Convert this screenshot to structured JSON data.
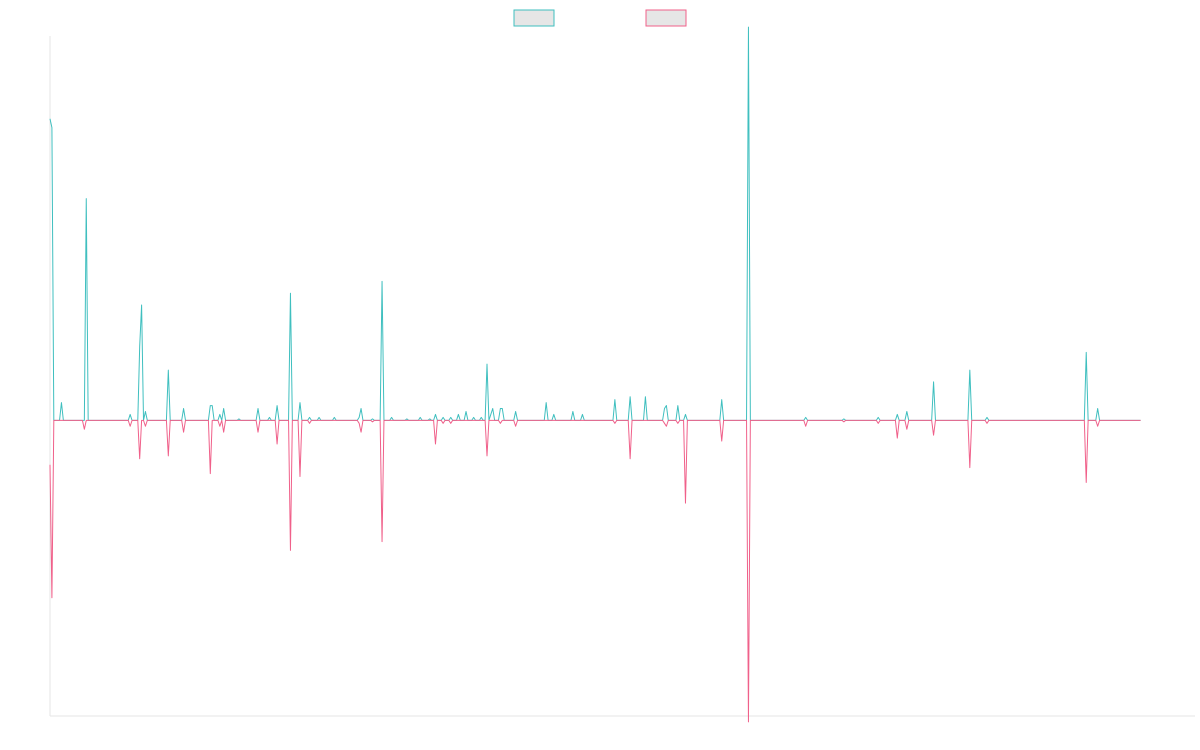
{
  "chart_data": {
    "type": "line",
    "title": "",
    "xlabel": "",
    "ylabel": "",
    "xlim": [
      0,
      1200
    ],
    "ylim": [
      -100,
      130
    ],
    "grid": false,
    "legend_position": "top-center",
    "series": [
      {
        "name": "",
        "color": "#3fbfbf",
        "legend_fill": "#e6e6e6",
        "points": [
          [
            0,
            102
          ],
          [
            2,
            99
          ],
          [
            4,
            0
          ],
          [
            10,
            0
          ],
          [
            12,
            6
          ],
          [
            14,
            0
          ],
          [
            34,
            0
          ],
          [
            36,
            0
          ],
          [
            38,
            75
          ],
          [
            40,
            0
          ],
          [
            82,
            0
          ],
          [
            84,
            2
          ],
          [
            86,
            0
          ],
          [
            92,
            0
          ],
          [
            94,
            25
          ],
          [
            96,
            39
          ],
          [
            98,
            0
          ],
          [
            100,
            3
          ],
          [
            102,
            0
          ],
          [
            122,
            0
          ],
          [
            124,
            17
          ],
          [
            126,
            0
          ],
          [
            138,
            0
          ],
          [
            140,
            4
          ],
          [
            142,
            0
          ],
          [
            166,
            0
          ],
          [
            168,
            5
          ],
          [
            170,
            5
          ],
          [
            172,
            0
          ],
          [
            176,
            0
          ],
          [
            178,
            2
          ],
          [
            180,
            0
          ],
          [
            182,
            4
          ],
          [
            184,
            0
          ],
          [
            196,
            0
          ],
          [
            198,
            0.5
          ],
          [
            200,
            0
          ],
          [
            216,
            0
          ],
          [
            218,
            4
          ],
          [
            220,
            0
          ],
          [
            228,
            0
          ],
          [
            230,
            1
          ],
          [
            232,
            0
          ],
          [
            236,
            0
          ],
          [
            238,
            5
          ],
          [
            240,
            0
          ],
          [
            250,
            0
          ],
          [
            252,
            43
          ],
          [
            254,
            0
          ],
          [
            260,
            0
          ],
          [
            262,
            6
          ],
          [
            264,
            0
          ],
          [
            270,
            0
          ],
          [
            272,
            1
          ],
          [
            274,
            0
          ],
          [
            280,
            0
          ],
          [
            282,
            1
          ],
          [
            284,
            0
          ],
          [
            296,
            0
          ],
          [
            298,
            1
          ],
          [
            300,
            0
          ],
          [
            322,
            0
          ],
          [
            324,
            1
          ],
          [
            326,
            4
          ],
          [
            328,
            0
          ],
          [
            336,
            0
          ],
          [
            338,
            0.5
          ],
          [
            340,
            0
          ],
          [
            346,
            0
          ],
          [
            348,
            47
          ],
          [
            350,
            0
          ],
          [
            356,
            0
          ],
          [
            358,
            1
          ],
          [
            360,
            0
          ],
          [
            372,
            0
          ],
          [
            374,
            0.5
          ],
          [
            376,
            0
          ],
          [
            386,
            0
          ],
          [
            388,
            1
          ],
          [
            390,
            0
          ],
          [
            396,
            0
          ],
          [
            398,
            0.5
          ],
          [
            400,
            0
          ],
          [
            402,
            0
          ],
          [
            404,
            2
          ],
          [
            406,
            0
          ],
          [
            410,
            0
          ],
          [
            412,
            1
          ],
          [
            414,
            0
          ],
          [
            418,
            0
          ],
          [
            420,
            1
          ],
          [
            422,
            0
          ],
          [
            426,
            0
          ],
          [
            428,
            2
          ],
          [
            430,
            0
          ],
          [
            434,
            0
          ],
          [
            436,
            3
          ],
          [
            438,
            0
          ],
          [
            442,
            0
          ],
          [
            444,
            1
          ],
          [
            446,
            0
          ],
          [
            450,
            0
          ],
          [
            452,
            1
          ],
          [
            454,
            0
          ],
          [
            456,
            0
          ],
          [
            458,
            19
          ],
          [
            460,
            0
          ],
          [
            462,
            2
          ],
          [
            464,
            4
          ],
          [
            466,
            0
          ],
          [
            470,
            0
          ],
          [
            472,
            4
          ],
          [
            474,
            4
          ],
          [
            476,
            0
          ],
          [
            486,
            0
          ],
          [
            488,
            3
          ],
          [
            490,
            0
          ],
          [
            518,
            0
          ],
          [
            520,
            6
          ],
          [
            522,
            0
          ],
          [
            526,
            0
          ],
          [
            528,
            2
          ],
          [
            530,
            0
          ],
          [
            546,
            0
          ],
          [
            548,
            3
          ],
          [
            550,
            0
          ],
          [
            556,
            0
          ],
          [
            558,
            2
          ],
          [
            560,
            0
          ],
          [
            590,
            0
          ],
          [
            592,
            7
          ],
          [
            594,
            0
          ],
          [
            606,
            0
          ],
          [
            608,
            8
          ],
          [
            610,
            0
          ],
          [
            622,
            0
          ],
          [
            624,
            8
          ],
          [
            626,
            0
          ],
          [
            642,
            0
          ],
          [
            644,
            4
          ],
          [
            646,
            5
          ],
          [
            648,
            0
          ],
          [
            656,
            0
          ],
          [
            658,
            5
          ],
          [
            660,
            0
          ],
          [
            664,
            0
          ],
          [
            666,
            2
          ],
          [
            668,
            0
          ],
          [
            702,
            0
          ],
          [
            704,
            7
          ],
          [
            706,
            0
          ],
          [
            730,
            0
          ],
          [
            732,
            133
          ],
          [
            734,
            0
          ],
          [
            790,
            0
          ],
          [
            792,
            1
          ],
          [
            794,
            0
          ],
          [
            830,
            0
          ],
          [
            832,
            0.5
          ],
          [
            834,
            0
          ],
          [
            866,
            0
          ],
          [
            868,
            1
          ],
          [
            870,
            0
          ],
          [
            886,
            0
          ],
          [
            888,
            2
          ],
          [
            890,
            0
          ],
          [
            896,
            0
          ],
          [
            898,
            3
          ],
          [
            900,
            0
          ],
          [
            924,
            0
          ],
          [
            926,
            13
          ],
          [
            928,
            0
          ],
          [
            962,
            0
          ],
          [
            964,
            17
          ],
          [
            966,
            0
          ],
          [
            980,
            0
          ],
          [
            982,
            1
          ],
          [
            984,
            0
          ],
          [
            1084,
            0
          ],
          [
            1086,
            23
          ],
          [
            1088,
            0
          ],
          [
            1096,
            0
          ],
          [
            1098,
            4
          ],
          [
            1100,
            0
          ],
          [
            1143,
            0
          ]
        ]
      },
      {
        "name": "",
        "color": "#f0608a",
        "legend_fill": "#e6e6e6",
        "points": [
          [
            0,
            -15
          ],
          [
            2,
            -60
          ],
          [
            4,
            0
          ],
          [
            34,
            0
          ],
          [
            36,
            -3
          ],
          [
            38,
            0
          ],
          [
            82,
            0
          ],
          [
            84,
            -2
          ],
          [
            86,
            0
          ],
          [
            92,
            0
          ],
          [
            94,
            -13
          ],
          [
            96,
            0
          ],
          [
            98,
            0
          ],
          [
            100,
            -2
          ],
          [
            102,
            0
          ],
          [
            122,
            0
          ],
          [
            124,
            -12
          ],
          [
            126,
            0
          ],
          [
            138,
            0
          ],
          [
            140,
            -4
          ],
          [
            142,
            0
          ],
          [
            166,
            0
          ],
          [
            168,
            -18
          ],
          [
            170,
            0
          ],
          [
            176,
            0
          ],
          [
            178,
            -2
          ],
          [
            180,
            0
          ],
          [
            182,
            -4
          ],
          [
            184,
            0
          ],
          [
            216,
            0
          ],
          [
            218,
            -4
          ],
          [
            220,
            0
          ],
          [
            236,
            0
          ],
          [
            238,
            -8
          ],
          [
            240,
            0
          ],
          [
            250,
            0
          ],
          [
            252,
            -44
          ],
          [
            254,
            0
          ],
          [
            260,
            0
          ],
          [
            262,
            -19
          ],
          [
            264,
            0
          ],
          [
            270,
            0
          ],
          [
            272,
            -1
          ],
          [
            274,
            0
          ],
          [
            322,
            0
          ],
          [
            324,
            -1
          ],
          [
            326,
            -4
          ],
          [
            328,
            0
          ],
          [
            336,
            0
          ],
          [
            338,
            -0.5
          ],
          [
            340,
            0
          ],
          [
            346,
            0
          ],
          [
            348,
            -41
          ],
          [
            350,
            0
          ],
          [
            402,
            0
          ],
          [
            404,
            -8
          ],
          [
            406,
            0
          ],
          [
            410,
            0
          ],
          [
            412,
            -1
          ],
          [
            414,
            0
          ],
          [
            418,
            0
          ],
          [
            420,
            -1
          ],
          [
            422,
            0
          ],
          [
            456,
            0
          ],
          [
            458,
            -12
          ],
          [
            460,
            0
          ],
          [
            470,
            0
          ],
          [
            472,
            -1
          ],
          [
            474,
            0
          ],
          [
            486,
            0
          ],
          [
            488,
            -2
          ],
          [
            490,
            0
          ],
          [
            590,
            0
          ],
          [
            592,
            -1
          ],
          [
            594,
            0
          ],
          [
            606,
            0
          ],
          [
            608,
            -13
          ],
          [
            610,
            0
          ],
          [
            642,
            0
          ],
          [
            644,
            -1
          ],
          [
            646,
            -2
          ],
          [
            648,
            0
          ],
          [
            656,
            0
          ],
          [
            658,
            -1
          ],
          [
            660,
            0
          ],
          [
            664,
            0
          ],
          [
            666,
            -28
          ],
          [
            668,
            0
          ],
          [
            702,
            0
          ],
          [
            704,
            -7
          ],
          [
            706,
            0
          ],
          [
            730,
            0
          ],
          [
            732,
            -102
          ],
          [
            734,
            0
          ],
          [
            790,
            0
          ],
          [
            792,
            -2
          ],
          [
            794,
            0
          ],
          [
            830,
            0
          ],
          [
            832,
            -0.5
          ],
          [
            834,
            0
          ],
          [
            866,
            0
          ],
          [
            868,
            -1
          ],
          [
            870,
            0
          ],
          [
            886,
            0
          ],
          [
            888,
            -6
          ],
          [
            890,
            0
          ],
          [
            896,
            0
          ],
          [
            898,
            -3
          ],
          [
            900,
            0
          ],
          [
            924,
            0
          ],
          [
            926,
            -5
          ],
          [
            928,
            0
          ],
          [
            962,
            0
          ],
          [
            964,
            -16
          ],
          [
            966,
            0
          ],
          [
            980,
            0
          ],
          [
            982,
            -1
          ],
          [
            984,
            0
          ],
          [
            1084,
            0
          ],
          [
            1086,
            -21
          ],
          [
            1088,
            0
          ],
          [
            1096,
            0
          ],
          [
            1098,
            -2
          ],
          [
            1100,
            0
          ],
          [
            1143,
            0
          ]
        ]
      }
    ]
  }
}
